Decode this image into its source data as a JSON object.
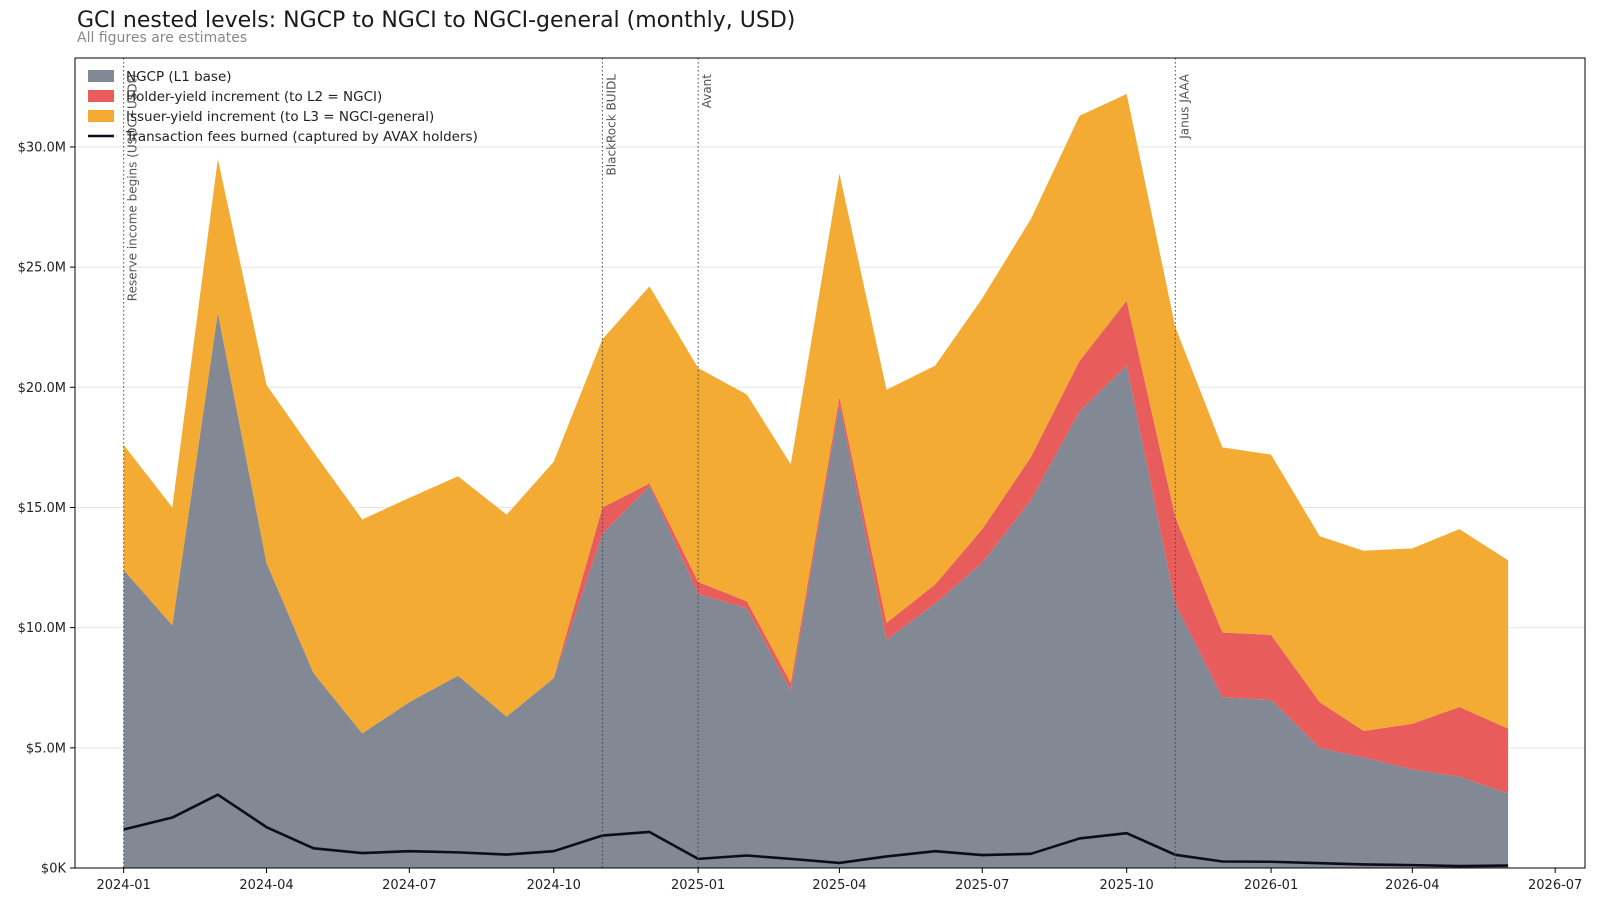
{
  "chart_data": {
    "type": "area",
    "title": "GCI nested levels: NGCP to NGCI to NGCI-general (monthly, USD)",
    "subtitle": "All figures are estimates",
    "xlabel": "",
    "ylabel": "",
    "ylim": [
      0,
      33700000
    ],
    "xlim": [
      "2023-12-01",
      "2026-07-20"
    ],
    "y_ticks": [
      {
        "value": 0,
        "label": "$0K"
      },
      {
        "value": 5000000,
        "label": "$5.0M"
      },
      {
        "value": 10000000,
        "label": "$10.0M"
      },
      {
        "value": 15000000,
        "label": "$15.0M"
      },
      {
        "value": 20000000,
        "label": "$20.0M"
      },
      {
        "value": 25000000,
        "label": "$25.0M"
      },
      {
        "value": 30000000,
        "label": "$30.0M"
      }
    ],
    "x_ticks": [
      {
        "date": "2024-01-01",
        "label": "2024-01"
      },
      {
        "date": "2024-04-01",
        "label": "2024-04"
      },
      {
        "date": "2024-07-01",
        "label": "2024-07"
      },
      {
        "date": "2024-10-01",
        "label": "2024-10"
      },
      {
        "date": "2025-01-01",
        "label": "2025-01"
      },
      {
        "date": "2025-04-01",
        "label": "2025-04"
      },
      {
        "date": "2025-07-01",
        "label": "2025-07"
      },
      {
        "date": "2025-10-01",
        "label": "2025-10"
      },
      {
        "date": "2026-01-01",
        "label": "2026-01"
      },
      {
        "date": "2026-04-01",
        "label": "2026-04"
      },
      {
        "date": "2026-07-01",
        "label": "2026-07"
      }
    ],
    "grid": true,
    "legend_position": "top-left",
    "x": [
      "2024-01-01",
      "2024-02-01",
      "2024-03-01",
      "2024-04-01",
      "2024-05-01",
      "2024-06-01",
      "2024-07-01",
      "2024-08-01",
      "2024-09-01",
      "2024-10-01",
      "2024-11-01",
      "2024-12-01",
      "2025-01-01",
      "2025-02-01",
      "2025-03-01",
      "2025-04-01",
      "2025-05-01",
      "2025-06-01",
      "2025-07-01",
      "2025-08-01",
      "2025-09-01",
      "2025-10-01",
      "2025-11-01",
      "2025-12-01",
      "2026-01-01",
      "2026-02-01",
      "2026-03-01",
      "2026-04-01",
      "2026-05-01",
      "2026-06-01"
    ],
    "series": [
      {
        "name": "NGCP (L1 base)",
        "kind": "stacked-area",
        "color": "#828894",
        "values": [
          12400000,
          10100000,
          23100000,
          12700000,
          8100000,
          5600000,
          6900000,
          8000000,
          6300000,
          7900000,
          13900000,
          15900000,
          11400000,
          10800000,
          7400000,
          19300000,
          9500000,
          11000000,
          12700000,
          15300000,
          19000000,
          20900000,
          11000000,
          7100000,
          7000000,
          5000000,
          4600000,
          4100000,
          3800000,
          3100000
        ]
      },
      {
        "name": "Holder-yield increment (to L2 = NGCI)",
        "kind": "stacked-area",
        "color": "#e85c5c",
        "values": [
          0,
          0,
          0,
          0,
          0,
          0,
          0,
          0,
          0,
          0,
          1100000,
          100000,
          500000,
          300000,
          300000,
          300000,
          700000,
          800000,
          1400000,
          1800000,
          2100000,
          2700000,
          3600000,
          2700000,
          2700000,
          1900000,
          1100000,
          1900000,
          2900000,
          2700000
        ]
      },
      {
        "name": "Issuer-yield increment (to L3 = NGCI-general)",
        "kind": "stacked-area",
        "color": "#f4ab33",
        "values": [
          5200000,
          4900000,
          6400000,
          7400000,
          9200000,
          8900000,
          8500000,
          8300000,
          8400000,
          9000000,
          7000000,
          8200000,
          8900000,
          8600000,
          9100000,
          9300000,
          9700000,
          9100000,
          9600000,
          9900000,
          10200000,
          8600000,
          7900000,
          7700000,
          7500000,
          6900000,
          7500000,
          7300000,
          7400000,
          7000000
        ]
      },
      {
        "name": "Transaction fees burned (captured by AVAX holders)",
        "kind": "line",
        "color": "#0d0d1a",
        "values": [
          1600000,
          2100000,
          3050000,
          1700000,
          820000,
          620000,
          700000,
          650000,
          560000,
          700000,
          1350000,
          1500000,
          380000,
          520000,
          380000,
          210000,
          480000,
          700000,
          540000,
          590000,
          1230000,
          1450000,
          550000,
          270000,
          260000,
          200000,
          150000,
          120000,
          80000,
          100000
        ]
      }
    ],
    "annotations": [
      {
        "date": "2024-01-01",
        "label": "Reserve income begins (USDC+USDt)"
      },
      {
        "date": "2024-11-01",
        "label": "BlackRock BUIDL"
      },
      {
        "date": "2025-01-01",
        "label": "Avant"
      },
      {
        "date": "2025-11-01",
        "label": "Janus JAAA"
      }
    ]
  }
}
